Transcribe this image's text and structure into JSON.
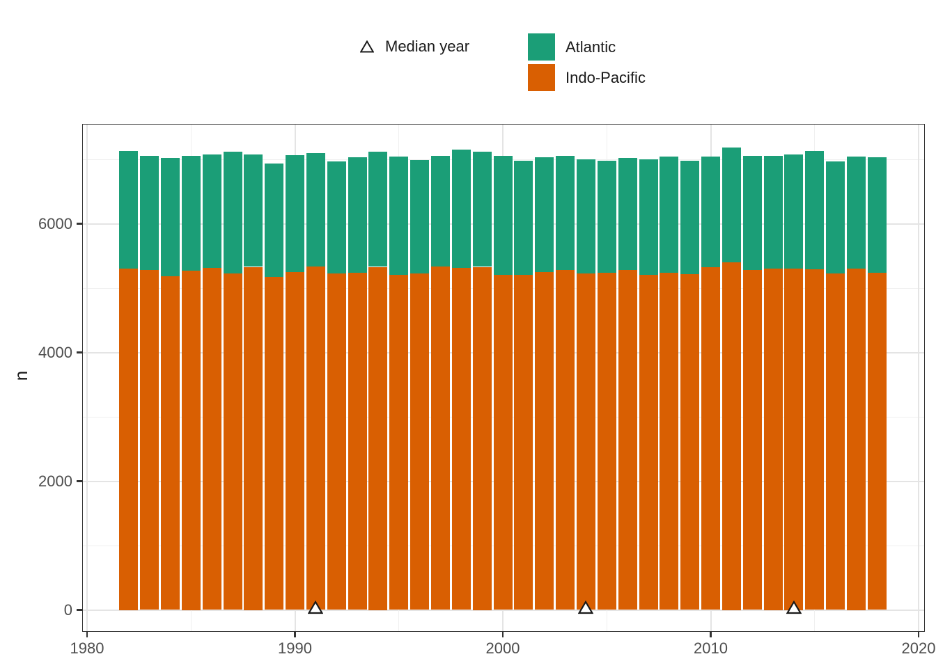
{
  "legend": {
    "median_label": "Median year",
    "entries": [
      "Atlantic",
      "Indo-Pacific"
    ]
  },
  "colors": {
    "atlantic": "#1B9E77",
    "indo_pacific": "#D95F02",
    "grid_major": "#E4E4E4",
    "grid_minor": "#EFEFEF",
    "panel_border": "#333333",
    "tick": "#333333",
    "tick_label": "#4D4D4D",
    "text": "#1A1A1A",
    "marker_fill": "#FFFFFF",
    "marker_stroke": "#1A1A1A",
    "background": "#FFFFFF"
  },
  "chart_data": {
    "type": "bar",
    "stacked": true,
    "orientation": "vertical",
    "title": "",
    "xlabel": "",
    "ylabel": "n",
    "legend_position": "top",
    "grid": true,
    "xlim": [
      1980,
      2020
    ],
    "ylim": [
      0,
      7540
    ],
    "x_ticks": [
      1980,
      1990,
      2000,
      2010,
      2020
    ],
    "y_ticks": [
      0,
      2000,
      4000,
      6000
    ],
    "x_minor_gridlines": [
      1985,
      1995,
      2005,
      2015
    ],
    "y_minor_gridlines": [
      1000,
      3000,
      5000,
      7000
    ],
    "years": [
      1982,
      1983,
      1984,
      1985,
      1986,
      1987,
      1988,
      1989,
      1990,
      1991,
      1992,
      1993,
      1994,
      1995,
      1996,
      1997,
      1998,
      1999,
      2000,
      2001,
      2002,
      2003,
      2004,
      2005,
      2006,
      2007,
      2008,
      2009,
      2010,
      2011,
      2012,
      2013,
      2014,
      2015,
      2016,
      2017,
      2018
    ],
    "series": [
      {
        "name": "Atlantic",
        "color": "#1B9E77",
        "stack_position": "top",
        "values": [
          1830,
          1780,
          1840,
          1790,
          1770,
          1890,
          1750,
          1770,
          1820,
          1760,
          1740,
          1790,
          1790,
          1830,
          1760,
          1710,
          1840,
          1790,
          1850,
          1770,
          1780,
          1780,
          1770,
          1740,
          1740,
          1790,
          1800,
          1760,
          1720,
          1780,
          1780,
          1760,
          1780,
          1840,
          1740,
          1740,
          1790
        ]
      },
      {
        "name": "Indo-Pacific",
        "color": "#D95F02",
        "stack_position": "bottom",
        "values": [
          5300,
          5280,
          5180,
          5270,
          5310,
          5230,
          5330,
          5170,
          5250,
          5340,
          5230,
          5240,
          5330,
          5210,
          5230,
          5340,
          5310,
          5330,
          5210,
          5210,
          5250,
          5280,
          5230,
          5240,
          5280,
          5210,
          5240,
          5220,
          5320,
          5400,
          5280,
          5300,
          5300,
          5290,
          5230,
          5300,
          5240
        ]
      }
    ],
    "median_year_markers": [
      1991,
      2004,
      2014
    ]
  }
}
